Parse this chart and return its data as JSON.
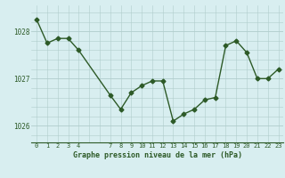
{
  "x": [
    0,
    1,
    2,
    3,
    4,
    7,
    8,
    9,
    10,
    11,
    12,
    13,
    14,
    15,
    16,
    17,
    18,
    19,
    20,
    21,
    22,
    23
  ],
  "y": [
    1028.25,
    1027.75,
    1027.85,
    1027.85,
    1027.6,
    1026.65,
    1026.35,
    1026.7,
    1026.85,
    1026.95,
    1026.95,
    1026.1,
    1026.25,
    1026.35,
    1026.55,
    1026.6,
    1027.7,
    1027.8,
    1027.55,
    1027.0,
    1027.0,
    1027.2
  ],
  "line_color": "#2d5a27",
  "marker": "D",
  "marker_size": 2.5,
  "bg_color": "#d8eef0",
  "grid_color": "#b0cccc",
  "label_color": "#2d5a27",
  "title": "Graphe pression niveau de la mer (hPa)",
  "yticks": [
    1026,
    1027,
    1028
  ],
  "xtick_labels": [
    "0",
    "1",
    "2",
    "3",
    "4",
    "",
    "",
    "7",
    "8",
    "9",
    "10",
    "11",
    "12",
    "13",
    "14",
    "15",
    "16",
    "17",
    "18",
    "19",
    "20",
    "21",
    "22",
    "23"
  ],
  "xlim": [
    -0.5,
    23.5
  ],
  "ylim": [
    1025.65,
    1028.55
  ]
}
